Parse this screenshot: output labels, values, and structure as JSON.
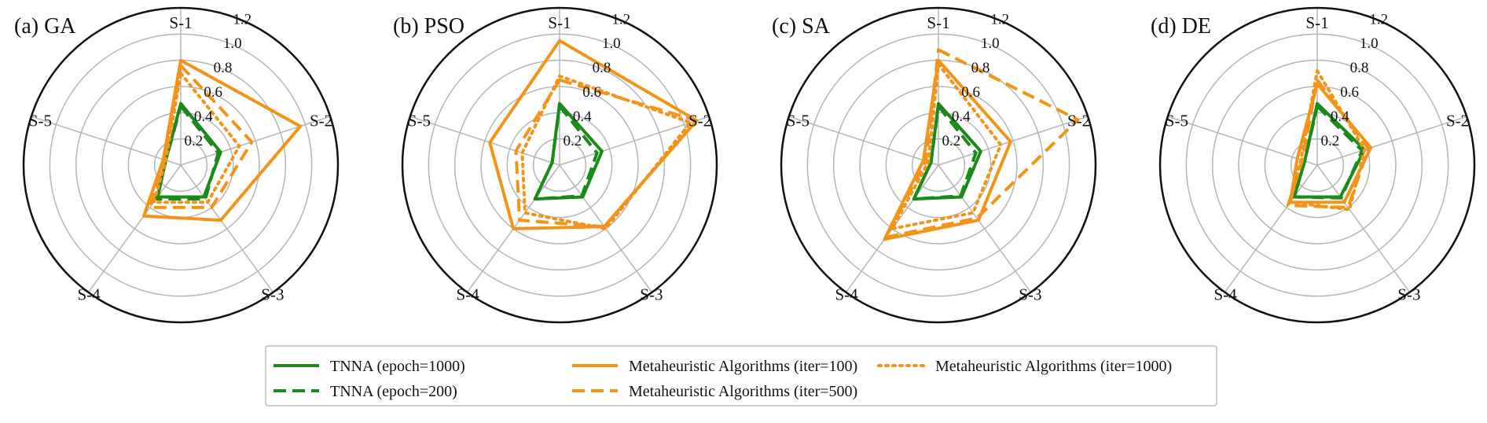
{
  "chart_data": {
    "type": "radar",
    "axes": [
      "S-1",
      "S-2",
      "S-3",
      "S-4",
      "S-5"
    ],
    "rticks": [
      "0.2",
      "0.4",
      "0.6",
      "0.8",
      "1.0",
      "1.2"
    ],
    "rlim": [
      0,
      1.2
    ],
    "grid": true,
    "legend_position": "bottom",
    "series_styles": [
      {
        "name": "TNNA (epoch=1000)",
        "color": "#1a8a1a",
        "dash": "solid"
      },
      {
        "name": "TNNA (epoch=200)",
        "color": "#1a8a1a",
        "dash": "dashed"
      },
      {
        "name": "Metaheuristic Algorithms (iter=100)",
        "color": "#f39419",
        "dash": "solid"
      },
      {
        "name": "Metaheuristic Algorithms (iter=500)",
        "color": "#f39419",
        "dash": "dashed"
      },
      {
        "name": "Metaheuristic Algorithms (iter=1000)",
        "color": "#f39419",
        "dash": "dotted"
      }
    ],
    "panels": [
      {
        "title": "(a) GA",
        "series": [
          [
            0.47,
            0.32,
            0.3,
            0.3,
            0.12
          ],
          [
            0.45,
            0.3,
            0.32,
            0.32,
            0.12
          ],
          [
            0.8,
            0.96,
            0.52,
            0.48,
            0.14
          ],
          [
            0.76,
            0.57,
            0.4,
            0.4,
            0.13
          ],
          [
            0.7,
            0.47,
            0.35,
            0.35,
            0.12
          ]
        ]
      },
      {
        "title": "(b) PSO",
        "series": [
          [
            0.47,
            0.34,
            0.3,
            0.32,
            0.06
          ],
          [
            0.45,
            0.3,
            0.29,
            0.32,
            0.06
          ],
          [
            0.95,
            1.1,
            0.58,
            0.6,
            0.56
          ],
          [
            0.65,
            1.1,
            0.58,
            0.52,
            0.35
          ],
          [
            0.68,
            1.05,
            0.6,
            0.45,
            0.3
          ]
        ]
      },
      {
        "title": "(c) SA",
        "series": [
          [
            0.47,
            0.34,
            0.3,
            0.32,
            0.06
          ],
          [
            0.45,
            0.3,
            0.29,
            0.32,
            0.06
          ],
          [
            0.8,
            0.58,
            0.52,
            0.7,
            0.12
          ],
          [
            0.88,
            1.12,
            0.5,
            0.68,
            0.1
          ],
          [
            0.77,
            0.5,
            0.45,
            0.6,
            0.08
          ]
        ]
      },
      {
        "title": "(d) DE",
        "series": [
          [
            0.47,
            0.38,
            0.3,
            0.3,
            0.1
          ],
          [
            0.45,
            0.36,
            0.31,
            0.3,
            0.1
          ],
          [
            0.62,
            0.43,
            0.35,
            0.35,
            0.16
          ],
          [
            0.65,
            0.41,
            0.4,
            0.38,
            0.12
          ],
          [
            0.72,
            0.38,
            0.42,
            0.35,
            0.13
          ]
        ]
      }
    ]
  },
  "legend": {
    "entries": [
      {
        "label": "TNNA (epoch=1000)",
        "color": "#1a8a1a",
        "dash": "solid"
      },
      {
        "label": "Metaheuristic Algorithms (iter=100)",
        "color": "#f39419",
        "dash": "solid"
      },
      {
        "label": "Metaheuristic Algorithms (iter=1000)",
        "color": "#f39419",
        "dash": "dotted"
      },
      {
        "label": "TNNA (epoch=200)",
        "color": "#1a8a1a",
        "dash": "dashed"
      },
      {
        "label": "Metaheuristic Algorithms (iter=500)",
        "color": "#f39419",
        "dash": "dashed"
      }
    ]
  }
}
